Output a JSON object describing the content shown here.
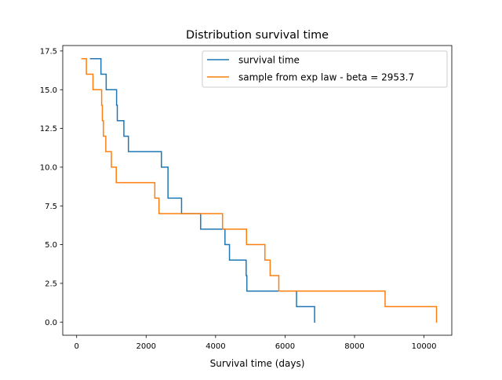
{
  "chart_data": {
    "type": "line",
    "drawstyle": "steps-post",
    "title": "Distribution survival time",
    "xlabel": "Survival time (days)",
    "ylabel": "",
    "xlim": [
      -400,
      10800
    ],
    "ylim": [
      -0.85,
      17.85
    ],
    "xticks": [
      0,
      2000,
      4000,
      6000,
      8000,
      10000
    ],
    "xtick_labels": [
      "0",
      "2000",
      "4000",
      "6000",
      "8000",
      "10000"
    ],
    "yticks": [
      0,
      2.5,
      5,
      7.5,
      10,
      12.5,
      15,
      17.5
    ],
    "ytick_labels": [
      "0.0",
      "2.5",
      "5.0",
      "7.5",
      "10.0",
      "12.5",
      "15.0",
      "17.5"
    ],
    "grid": false,
    "legend": {
      "location": "upper right"
    },
    "series": [
      {
        "name": "survival time",
        "color": "#1f77b4",
        "points": [
          [
            400,
            17
          ],
          [
            700,
            16
          ],
          [
            850,
            15
          ],
          [
            1150,
            14
          ],
          [
            1170,
            13
          ],
          [
            1360,
            12
          ],
          [
            1490,
            11
          ],
          [
            2440,
            10
          ],
          [
            2630,
            8
          ],
          [
            3020,
            7
          ],
          [
            3570,
            6
          ],
          [
            4270,
            5
          ],
          [
            4400,
            4
          ],
          [
            4880,
            3
          ],
          [
            4900,
            2
          ],
          [
            6330,
            1
          ],
          [
            6850,
            0
          ]
        ]
      },
      {
        "name": "sample from exp law - beta = 2953.7",
        "color": "#ff7f0e",
        "points": [
          [
            150,
            17
          ],
          [
            280,
            16
          ],
          [
            470,
            15
          ],
          [
            720,
            14
          ],
          [
            740,
            13
          ],
          [
            770,
            12
          ],
          [
            840,
            11
          ],
          [
            1000,
            10
          ],
          [
            1140,
            9
          ],
          [
            2250,
            8
          ],
          [
            2370,
            7
          ],
          [
            4200,
            6
          ],
          [
            4890,
            5
          ],
          [
            5420,
            4
          ],
          [
            5570,
            3
          ],
          [
            5820,
            2
          ],
          [
            8880,
            1
          ],
          [
            10360,
            0
          ]
        ]
      }
    ]
  }
}
